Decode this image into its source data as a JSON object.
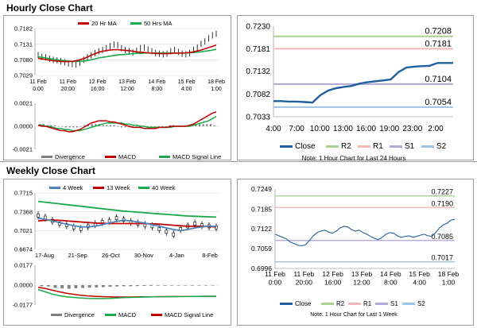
{
  "hourly_title": "Hourly Close Chart",
  "weekly_title": "Weekly Close Chart",
  "chart_data": [
    {
      "id": "hourly_price",
      "type": "line",
      "legend": [
        {
          "label": "20 Hr MA",
          "color": "#c00000"
        },
        {
          "label": "50 Hrs MA",
          "color": "#1aa84a"
        }
      ],
      "y_ticks": [
        "0.7182",
        "0.7131",
        "0.7080",
        "0.7029"
      ],
      "ylim": [
        0.7029,
        0.7182
      ],
      "x_ticks": [
        "11 Feb\n0:00",
        "11 Feb\n20:00",
        "12 Feb\n16:00",
        "13 Feb\n12:00",
        "14 Feb\n8:00",
        "15 Feb\n4:00",
        "18 Feb\n1:00"
      ],
      "price": [
        0.7095,
        0.709,
        0.7088,
        0.7084,
        0.708,
        0.7078,
        0.7076,
        0.7072,
        0.7068,
        0.7066,
        0.7064,
        0.707,
        0.708,
        0.7088,
        0.7095,
        0.7102,
        0.7108,
        0.7112,
        0.7118,
        0.7125,
        0.713,
        0.7128,
        0.7118,
        0.7112,
        0.7108,
        0.7104,
        0.711,
        0.7118,
        0.712,
        0.7114,
        0.7108,
        0.7102,
        0.71,
        0.7098,
        0.71,
        0.7108,
        0.7112,
        0.7106,
        0.71,
        0.7098,
        0.7102,
        0.7112,
        0.712,
        0.7132,
        0.714,
        0.715,
        0.716,
        0.7165
      ],
      "ma20": [
        0.7085,
        0.7083,
        0.7081,
        0.7079,
        0.7077,
        0.7076,
        0.7075,
        0.7074,
        0.7074,
        0.7075,
        0.7077,
        0.708,
        0.7084,
        0.7089,
        0.7095,
        0.71,
        0.7105,
        0.7108,
        0.711,
        0.7112,
        0.7113,
        0.7113,
        0.7112,
        0.7111,
        0.711,
        0.7108,
        0.7106,
        0.7105,
        0.7104,
        0.7103,
        0.7102,
        0.7101,
        0.71,
        0.71,
        0.71,
        0.7101,
        0.7102,
        0.7102,
        0.7102,
        0.7103,
        0.7104,
        0.7106,
        0.7109,
        0.7112,
        0.7116,
        0.712,
        0.7124,
        0.7128
      ],
      "ma50": [
        0.709,
        0.7088,
        0.7086,
        0.7084,
        0.7082,
        0.708,
        0.7078,
        0.7077,
        0.7076,
        0.7075,
        0.7075,
        0.7075,
        0.7076,
        0.7078,
        0.708,
        0.7083,
        0.7086,
        0.7088,
        0.709,
        0.7092,
        0.7094,
        0.7096,
        0.7097,
        0.7098,
        0.7099,
        0.71,
        0.7101,
        0.7101,
        0.7102,
        0.7102,
        0.7102,
        0.7102,
        0.7102,
        0.7102,
        0.7102,
        0.7102,
        0.7102,
        0.7102,
        0.7102,
        0.7102,
        0.7103,
        0.7104,
        0.7105,
        0.7106,
        0.7108,
        0.711,
        0.7112,
        0.7114
      ]
    },
    {
      "id": "hourly_macd",
      "type": "bar",
      "y_ticks": [
        "0.0021",
        "0.0000",
        "-0.0021"
      ],
      "ylim": [
        -0.0021,
        0.0021
      ],
      "legend": [
        {
          "label": "Divergence",
          "color": "#7f7f7f"
        },
        {
          "label": "MACD",
          "color": "#c00000"
        },
        {
          "label": "MACD Signal Line",
          "color": "#1aa84a"
        }
      ],
      "divergence": [
        0.0002,
        0.0002,
        0.0001,
        0.0001,
        0.0001,
        0.0,
        0.0,
        -0.0001,
        -0.0001,
        -0.0001,
        -0.0001,
        0.0,
        0.0001,
        0.0002,
        0.0002,
        0.0002,
        0.0002,
        0.0001,
        0.0001,
        0.0001,
        0.0001,
        0.0,
        -0.0001,
        -0.0001,
        -0.0001,
        -0.0001,
        0.0,
        0.0,
        0.0,
        -0.0001,
        -0.0001,
        -0.0001,
        0.0,
        0.0,
        0.0,
        0.0001,
        0.0001,
        0.0,
        0.0,
        0.0,
        0.0001,
        0.0001,
        0.0002,
        0.0002,
        0.0002,
        0.0002,
        0.0002,
        0.0001
      ],
      "macd": [
        0.0001,
        0.0,
        0.0,
        -0.0001,
        -0.0002,
        -0.0003,
        -0.0004,
        -0.0004,
        -0.0005,
        -0.0005,
        -0.0004,
        -0.0003,
        -0.0001,
        0.0001,
        0.0003,
        0.0004,
        0.0005,
        0.0005,
        0.0005,
        0.0004,
        0.0004,
        0.0003,
        0.0002,
        0.0001,
        0.0,
        -0.0001,
        -0.0001,
        -0.0001,
        -0.0002,
        -0.0002,
        -0.0002,
        -0.0002,
        -0.0001,
        -0.0001,
        -0.0001,
        0.0,
        0.0,
        0.0,
        0.0,
        0.0,
        0.0001,
        0.0002,
        0.0004,
        0.0006,
        0.0008,
        0.001,
        0.0012,
        0.0013
      ],
      "signal": [
        0.0001,
        0.0001,
        0.0,
        0.0,
        -0.0001,
        -0.0002,
        -0.0002,
        -0.0003,
        -0.0003,
        -0.0004,
        -0.0004,
        -0.0004,
        -0.0003,
        -0.0002,
        -0.0001,
        0.0,
        0.0001,
        0.0002,
        0.0003,
        0.0003,
        0.0003,
        0.0003,
        0.0003,
        0.0002,
        0.0002,
        0.0001,
        0.0001,
        0.0,
        0.0,
        -0.0001,
        -0.0001,
        -0.0001,
        -0.0001,
        -0.0001,
        -0.0001,
        -0.0001,
        0.0,
        0.0,
        0.0,
        0.0,
        0.0,
        0.0001,
        0.0002,
        0.0003,
        0.0004,
        0.0005,
        0.0007,
        0.0009
      ]
    },
    {
      "id": "hourly_sr",
      "type": "line",
      "y_ticks": [
        "0.7230",
        "0.7181",
        "0.7132",
        "0.7082",
        "0.7033"
      ],
      "ylim": [
        0.7033,
        0.723
      ],
      "x_ticks": [
        "4:00",
        "7:00",
        "10:00",
        "13:00",
        "16:00",
        "19:00",
        "23:00",
        "2:00"
      ],
      "levels": [
        {
          "name": "R2",
          "value": 0.7208,
          "label": "0.7208",
          "color": "#a9d18e"
        },
        {
          "name": "R1",
          "value": 0.7181,
          "label": "0.7181",
          "color": "#f4b6b6"
        },
        {
          "name": "S1",
          "value": 0.7104,
          "label": "0.7104",
          "color": "#b4a7d6"
        },
        {
          "name": "S2",
          "value": 0.7054,
          "label": "0.7054",
          "color": "#9dc3e6"
        }
      ],
      "close": [
        0.7067,
        0.7067,
        0.7066,
        0.7066,
        0.7065,
        0.7064,
        0.708,
        0.709,
        0.7095,
        0.7098,
        0.71,
        0.7105,
        0.7108,
        0.711,
        0.7112,
        0.7114,
        0.713,
        0.714,
        0.7142,
        0.7143,
        0.7144,
        0.715,
        0.715,
        0.715
      ],
      "legend": [
        {
          "label": "Close",
          "color": "#1f5fa0"
        },
        {
          "label": "R2",
          "color": "#a9d18e"
        },
        {
          "label": "R1",
          "color": "#f4b6b6"
        },
        {
          "label": "S1",
          "color": "#b4a7d6"
        },
        {
          "label": "S2",
          "color": "#9dc3e6"
        }
      ],
      "note": "Note: 1 Hour Chart for Last 24 Hours"
    },
    {
      "id": "weekly_price",
      "type": "line",
      "legend": [
        {
          "label": "4 Week",
          "color": "#4f81bd"
        },
        {
          "label": "13 Week",
          "color": "#c00000"
        },
        {
          "label": "40 Week",
          "color": "#1aa84a"
        }
      ],
      "y_ticks": [
        "0.7715",
        "0.7368",
        "0.7021",
        "0.6674"
      ],
      "ylim": [
        0.6674,
        0.7715
      ],
      "x_ticks": [
        "17-Aug",
        "21-Sep",
        "26-Oct",
        "30-Nov",
        "4-Jan",
        "8-Feb"
      ],
      "price": [
        0.73,
        0.726,
        0.72,
        0.715,
        0.712,
        0.708,
        0.705,
        0.71,
        0.714,
        0.718,
        0.72,
        0.725,
        0.722,
        0.718,
        0.715,
        0.712,
        0.71,
        0.705,
        0.7,
        0.695,
        0.705,
        0.71,
        0.715,
        0.712,
        0.71,
        0.708
      ],
      "w4": [
        0.725,
        0.723,
        0.72,
        0.717,
        0.714,
        0.711,
        0.709,
        0.709,
        0.71,
        0.713,
        0.716,
        0.719,
        0.721,
        0.72,
        0.718,
        0.716,
        0.713,
        0.71,
        0.707,
        0.704,
        0.702,
        0.704,
        0.707,
        0.709,
        0.71,
        0.71
      ],
      "w13": [
        0.72,
        0.721,
        0.7215,
        0.721,
        0.72,
        0.719,
        0.718,
        0.717,
        0.716,
        0.7155,
        0.715,
        0.715,
        0.715,
        0.715,
        0.715,
        0.715,
        0.7145,
        0.714,
        0.713,
        0.712,
        0.711,
        0.71,
        0.71,
        0.71,
        0.7095,
        0.709
      ],
      "w40": [
        0.756,
        0.7545,
        0.753,
        0.7515,
        0.75,
        0.7485,
        0.747,
        0.7455,
        0.744,
        0.7425,
        0.741,
        0.7395,
        0.738,
        0.737,
        0.736,
        0.735,
        0.734,
        0.733,
        0.732,
        0.731,
        0.73,
        0.729,
        0.7285,
        0.728,
        0.7275,
        0.727
      ]
    },
    {
      "id": "weekly_macd",
      "type": "bar",
      "y_ticks": [
        "0.0177",
        "0.0000",
        "-0.0177"
      ],
      "ylim": [
        -0.0177,
        0.0177
      ],
      "legend": [
        {
          "label": "Divergence",
          "color": "#7f7f7f"
        },
        {
          "label": "MACD",
          "color": "#1aa84a"
        },
        {
          "label": "MACD Signal Line",
          "color": "#c00000"
        }
      ],
      "divergence": [
        -0.001,
        -0.0012,
        -0.0025,
        -0.003,
        -0.0032,
        -0.0028,
        -0.0025,
        -0.0022,
        -0.002,
        -0.0018,
        -0.0015,
        -0.0012,
        -0.001,
        -0.001,
        -0.0008,
        -0.0007,
        -0.0006,
        -0.0005,
        -0.0005,
        -0.0004,
        -0.0004,
        -0.0003,
        -0.0003,
        -0.0002,
        -0.0002,
        -0.0002
      ],
      "macd": [
        -0.004,
        -0.006,
        -0.008,
        -0.0095,
        -0.0105,
        -0.011,
        -0.0115,
        -0.0118,
        -0.012,
        -0.012,
        -0.0118,
        -0.0115,
        -0.0112,
        -0.011,
        -0.0108,
        -0.0106,
        -0.0105,
        -0.0104,
        -0.0103,
        -0.0103,
        -0.0102,
        -0.0102,
        -0.0101,
        -0.0101,
        -0.01,
        -0.01
      ],
      "signal": [
        -0.002,
        -0.003,
        -0.0045,
        -0.006,
        -0.0072,
        -0.0082,
        -0.009,
        -0.0096,
        -0.01,
        -0.0103,
        -0.0105,
        -0.0106,
        -0.0106,
        -0.0106,
        -0.0105,
        -0.0104,
        -0.0104,
        -0.0103,
        -0.0103,
        -0.0102,
        -0.0102,
        -0.0101,
        -0.0101,
        -0.01,
        -0.01,
        -0.01
      ]
    },
    {
      "id": "weekly_sr",
      "type": "line",
      "y_ticks": [
        "0.7249",
        "0.7185",
        "0.7122",
        "0.7059",
        "0.6996"
      ],
      "ylim": [
        0.6996,
        0.7249
      ],
      "x_ticks": [
        "11 Feb\n0:00",
        "11 Feb\n20:00",
        "12 Feb\n16:00",
        "13 Feb\n12:00",
        "14 Feb\n8:00",
        "15 Feb\n4:00",
        "18 Feb\n1:00"
      ],
      "levels": [
        {
          "name": "R2",
          "value": 0.7227,
          "label": "0.7227",
          "color": "#a9d18e"
        },
        {
          "name": "R1",
          "value": 0.719,
          "label": "0.7190",
          "color": "#f4b6b6"
        },
        {
          "name": "S1",
          "value": 0.7085,
          "label": "0.7085",
          "color": "#b4a7d6"
        },
        {
          "name": "S2",
          "value": 0.7017,
          "label": "0.7017",
          "color": "#9dc3e6"
        }
      ],
      "close": [
        0.7105,
        0.71,
        0.7095,
        0.709,
        0.708,
        0.7075,
        0.707,
        0.7068,
        0.7072,
        0.7085,
        0.71,
        0.711,
        0.7115,
        0.7118,
        0.7112,
        0.7108,
        0.7115,
        0.7125,
        0.713,
        0.7128,
        0.712,
        0.7115,
        0.7118,
        0.711,
        0.7105,
        0.7098,
        0.7092,
        0.7088,
        0.7095,
        0.7105,
        0.711,
        0.7108,
        0.71,
        0.7095,
        0.7098,
        0.71,
        0.7096,
        0.7098,
        0.7102,
        0.7105,
        0.71,
        0.7098,
        0.711,
        0.7125,
        0.7135,
        0.714,
        0.715,
        0.7152
      ],
      "legend": [
        {
          "label": "Close",
          "color": "#1f5fa0"
        },
        {
          "label": "R2",
          "color": "#a9d18e"
        },
        {
          "label": "R1",
          "color": "#f4b6b6"
        },
        {
          "label": "S1",
          "color": "#b4a7d6"
        },
        {
          "label": "S2",
          "color": "#9dc3e6"
        }
      ],
      "note": "Note: 1 Hour Chart for Last 1 Week"
    }
  ]
}
